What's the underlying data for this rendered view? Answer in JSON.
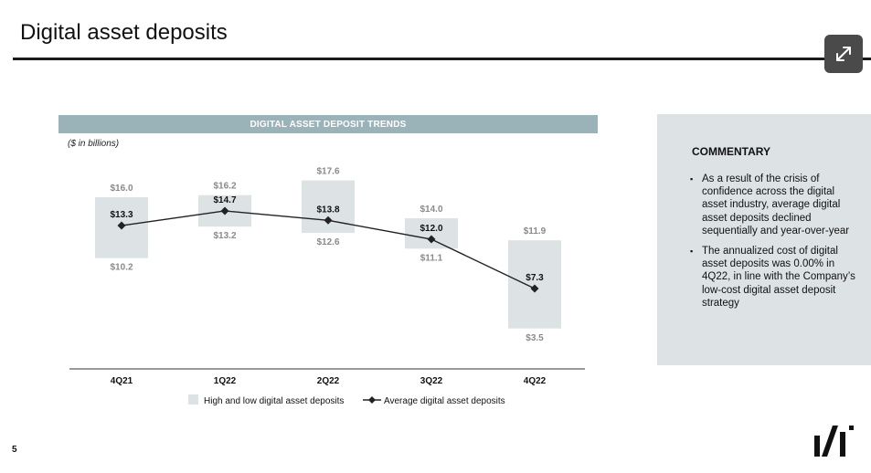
{
  "page": {
    "title": "Digital asset deposits",
    "page_number": "5",
    "expand_icon": "expand-arrows-icon",
    "logo_icon": "company-logo-icon"
  },
  "chart_data": {
    "type": "bar",
    "title": "DIGITAL ASSET DEPOSIT TRENDS",
    "subtitle": "($ in billions)",
    "categories": [
      "4Q21",
      "1Q22",
      "2Q22",
      "3Q22",
      "4Q22"
    ],
    "ylim": [
      0,
      20
    ],
    "series": [
      {
        "name": "High and low digital asset deposits",
        "kind": "range",
        "high": [
          16.0,
          16.2,
          17.6,
          14.0,
          11.9
        ],
        "low": [
          10.2,
          13.2,
          12.6,
          11.1,
          3.5
        ],
        "high_labels": [
          "$16.0",
          "$16.2",
          "$17.6",
          "$14.0",
          "$11.9"
        ],
        "low_labels": [
          "$10.2",
          "$13.2",
          "$12.6",
          "$11.1",
          "$3.5"
        ],
        "color": "#dde3e4"
      },
      {
        "name": "Average digital asset deposits",
        "kind": "line",
        "values": [
          13.3,
          14.7,
          13.8,
          12.0,
          7.3
        ],
        "labels": [
          "$13.3",
          "$14.7",
          "$13.8",
          "$12.0",
          "$7.3"
        ],
        "color": "#222222"
      }
    ],
    "legend": "bottom",
    "grid": false
  },
  "commentary": {
    "heading": "COMMENTARY",
    "bullets": [
      "As a result of the crisis of confidence across the digital asset industry, average digital asset deposits declined sequentially and year-over-year",
      "The annualized cost of digital asset deposits was 0.00% in 4Q22, in line with the Company’s low-cost digital asset deposit strategy"
    ]
  }
}
